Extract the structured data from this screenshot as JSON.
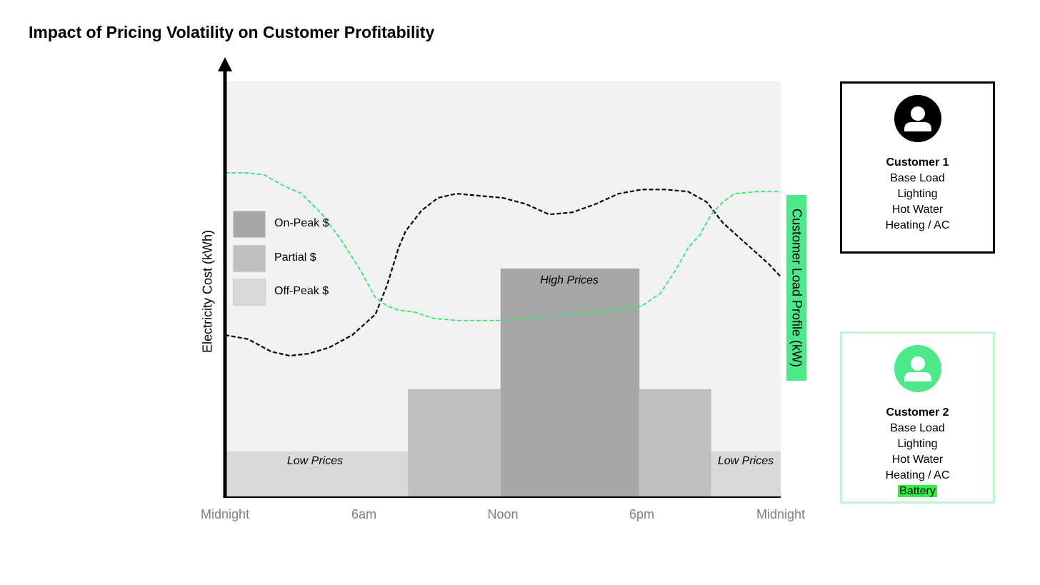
{
  "title": "Impact of Pricing Volatility on Customer Profitability",
  "chart_data": {
    "type": "line",
    "title": "Impact of Pricing Volatility on Customer Profitability",
    "ylabel": "Electricity Cost (kWh)",
    "y2label": "Customer Load Profile (kW)",
    "xlim": [
      0,
      24
    ],
    "ylim": [
      0,
      100
    ],
    "x_ticks": [
      {
        "hour": 0,
        "label": "Midnight"
      },
      {
        "hour": 6,
        "label": "6am"
      },
      {
        "hour": 12,
        "label": "Noon"
      },
      {
        "hour": 18,
        "label": "6pm"
      },
      {
        "hour": 24,
        "label": "Midnight"
      }
    ],
    "price_bands": [
      {
        "start": 0,
        "end": 7.9,
        "value": 11,
        "tier": "off_peak",
        "label": "Low Prices"
      },
      {
        "start": 7.9,
        "end": 11.9,
        "value": 26,
        "tier": "partial",
        "label": ""
      },
      {
        "start": 11.9,
        "end": 17.9,
        "value": 55,
        "tier": "on_peak",
        "label": "High Prices"
      },
      {
        "start": 17.9,
        "end": 21,
        "value": 26,
        "tier": "partial",
        "label": ""
      },
      {
        "start": 21,
        "end": 24,
        "value": 11,
        "tier": "off_peak",
        "label": "Low Prices"
      }
    ],
    "legend": [
      {
        "tier": "on_peak",
        "label": "On-Peak $"
      },
      {
        "tier": "partial",
        "label": "Partial $"
      },
      {
        "tier": "off_peak",
        "label": "Off-Peak $"
      }
    ],
    "legend_position": "left",
    "colors": {
      "on_peak": "#a6a6a6",
      "partial": "#bfbfbf",
      "off_peak": "#d9d9d9",
      "plot_bg": "#f2f2f2",
      "customer_1": "#000000",
      "customer_2": "#33e86b",
      "customer_2_light": "#bff5d3"
    },
    "series": [
      {
        "name": "Customer 1",
        "color": "#000000",
        "x": [
          0,
          1,
          2,
          2.8,
          3.6,
          4.5,
          5.5,
          6.5,
          7,
          7.5,
          7.8,
          8.5,
          9.2,
          10,
          11,
          12,
          13,
          14,
          15,
          16,
          17,
          18,
          19,
          20,
          20.8,
          21.5,
          22.5,
          23.5,
          24
        ],
        "y": [
          39,
          38,
          35,
          34,
          34.5,
          36,
          39,
          44,
          51,
          60,
          64,
          69,
          72,
          73,
          72.5,
          72,
          70.5,
          68,
          68.5,
          70.5,
          73,
          74,
          74,
          73.5,
          71,
          66,
          61,
          56,
          53
        ]
      },
      {
        "name": "Customer 2",
        "color": "#33e86b",
        "x": [
          0,
          1,
          1.7,
          2.5,
          3.3,
          4.2,
          5,
          5.8,
          6.5,
          7,
          7.5,
          8.2,
          9,
          10,
          11,
          12,
          13,
          14,
          15,
          16,
          17,
          18,
          18.8,
          19.5,
          20,
          20.5,
          21,
          21.5,
          22,
          23,
          24
        ],
        "y": [
          78,
          78,
          77.5,
          75,
          73,
          68,
          62,
          55,
          48,
          46,
          45,
          44.5,
          43,
          42.5,
          42.5,
          42.5,
          43,
          43.5,
          44,
          44.5,
          45,
          46,
          49,
          55,
          60,
          63,
          68,
          71,
          73,
          73.5,
          73.5
        ]
      }
    ]
  },
  "customers": [
    {
      "name": "Customer 1",
      "items": [
        "Base Load",
        "Lighting",
        "Hot Water",
        "Heating / AC"
      ],
      "extra": ""
    },
    {
      "name": "Customer 2",
      "items": [
        "Base Load",
        "Lighting",
        "Hot Water",
        "Heating / AC"
      ],
      "extra": "Battery"
    }
  ]
}
